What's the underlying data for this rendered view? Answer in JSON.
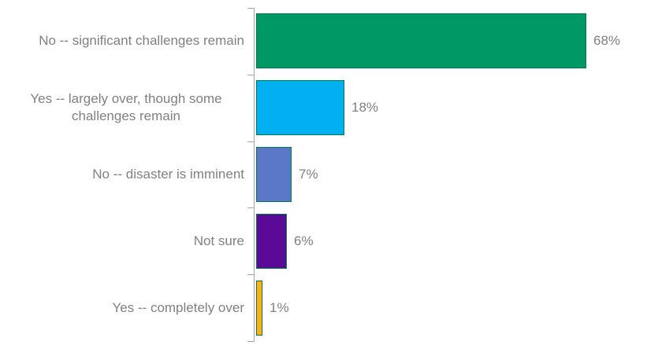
{
  "chart_data": {
    "type": "bar",
    "orientation": "horizontal",
    "title": "",
    "xlabel": "",
    "ylabel": "",
    "categories": [
      "No -- significant challenges remain",
      "Yes -- largely over, though some challenges remain",
      "No -- disaster is imminent",
      "Not sure",
      "Yes -- completely over"
    ],
    "values": [
      68,
      18,
      7,
      6,
      1
    ],
    "value_labels": [
      "68%",
      "18%",
      "7%",
      "6%",
      "1%"
    ],
    "xlim": [
      0,
      80
    ],
    "grid": false,
    "legend": false,
    "bar_colors": [
      "#009966",
      "#00B0F0",
      "#5B78C8",
      "#5A0A96",
      "#FBB316"
    ],
    "bar_border_color": "#007A4B",
    "axis_color": "#A6A6A6",
    "text_color": "#808080",
    "background": "#FFFFFF"
  }
}
